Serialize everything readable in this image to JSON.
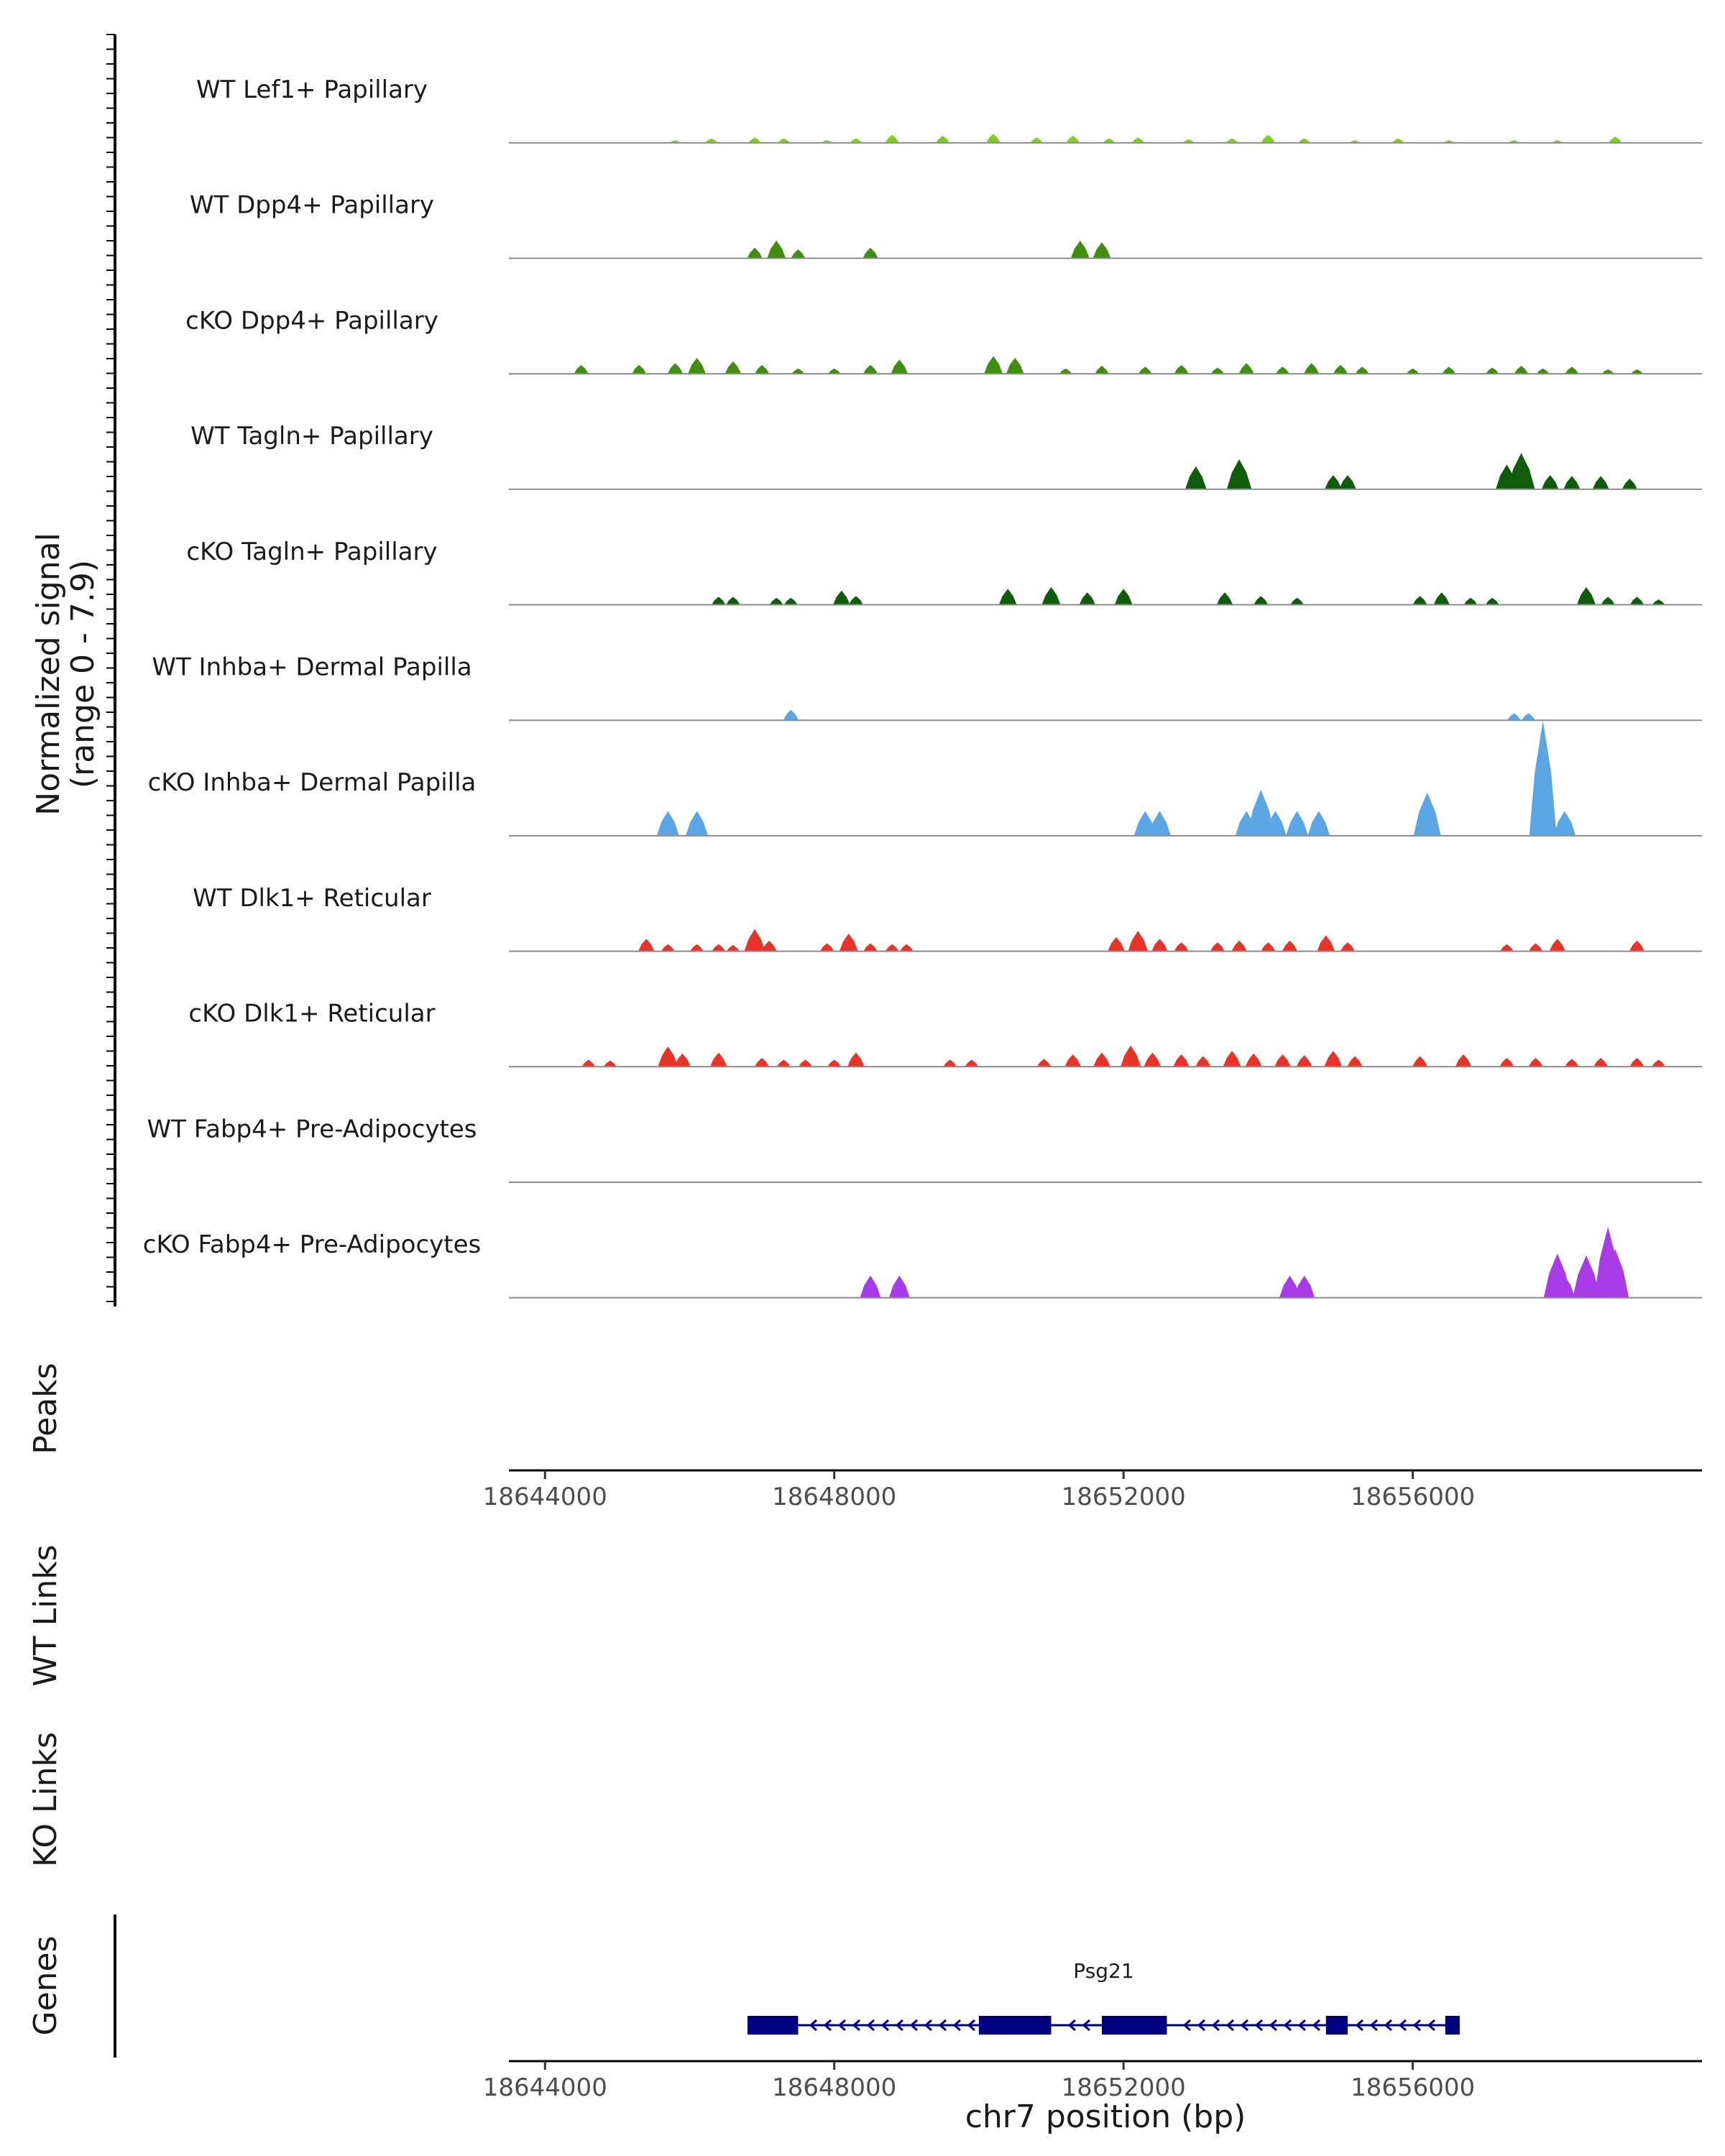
{
  "chart_data": {
    "type": "area",
    "title": "",
    "ylabel": "Normalized signal\n(range 0 - 7.9)",
    "ylim": [
      0,
      7.9
    ],
    "xlabel": "chr7 position (bp)",
    "xlim": [
      18643500,
      18660000
    ],
    "xticks": [
      18644000,
      18648000,
      18652000,
      18656000
    ],
    "xtick_labels": [
      "18644000",
      "18648000",
      "18652000",
      "18656000"
    ],
    "side_labels": {
      "peaks": "Peaks",
      "wt_links": "WT Links",
      "ko_links": "KO Links",
      "genes": "Genes"
    },
    "tracks": [
      {
        "name": "WT Lef1+ Papillary",
        "color": "#7ad31a",
        "peaks": [
          [
            18645800,
            0.3
          ],
          [
            18646300,
            0.5
          ],
          [
            18646900,
            0.6
          ],
          [
            18647300,
            0.5
          ],
          [
            18647900,
            0.3
          ],
          [
            18648300,
            0.5
          ],
          [
            18648800,
            0.9
          ],
          [
            18649500,
            0.8
          ],
          [
            18650200,
            1.0
          ],
          [
            18650800,
            0.6
          ],
          [
            18651300,
            0.8
          ],
          [
            18651800,
            0.5
          ],
          [
            18652200,
            0.6
          ],
          [
            18652900,
            0.4
          ],
          [
            18653500,
            0.5
          ],
          [
            18654000,
            0.9
          ],
          [
            18654500,
            0.5
          ],
          [
            18655200,
            0.3
          ],
          [
            18655800,
            0.5
          ],
          [
            18656500,
            0.3
          ],
          [
            18657400,
            0.3
          ],
          [
            18658000,
            0.3
          ],
          [
            18658800,
            0.7
          ]
        ]
      },
      {
        "name": "WT Dpp4+ Papillary",
        "color": "#3f8e0e",
        "peaks": [
          [
            18646900,
            1.2
          ],
          [
            18647200,
            2.0
          ],
          [
            18647500,
            1.0
          ],
          [
            18648500,
            1.2
          ],
          [
            18651400,
            2.0
          ],
          [
            18651700,
            1.8
          ]
        ]
      },
      {
        "name": "cKO Dpp4+ Papillary",
        "color": "#3f8e0e",
        "peaks": [
          [
            18644500,
            1.0
          ],
          [
            18645300,
            1.0
          ],
          [
            18645800,
            1.2
          ],
          [
            18646100,
            1.8
          ],
          [
            18646600,
            1.4
          ],
          [
            18647000,
            1.0
          ],
          [
            18647500,
            0.6
          ],
          [
            18648000,
            0.6
          ],
          [
            18648500,
            1.0
          ],
          [
            18648900,
            1.6
          ],
          [
            18650200,
            2.0
          ],
          [
            18650500,
            1.8
          ],
          [
            18651200,
            0.6
          ],
          [
            18651700,
            0.9
          ],
          [
            18652300,
            0.8
          ],
          [
            18652800,
            1.0
          ],
          [
            18653300,
            0.7
          ],
          [
            18653700,
            1.2
          ],
          [
            18654200,
            0.8
          ],
          [
            18654600,
            1.2
          ],
          [
            18655000,
            1.0
          ],
          [
            18655300,
            0.8
          ],
          [
            18656000,
            0.6
          ],
          [
            18656500,
            0.8
          ],
          [
            18657100,
            0.7
          ],
          [
            18657500,
            0.9
          ],
          [
            18657800,
            0.6
          ],
          [
            18658200,
            0.8
          ],
          [
            18658700,
            0.5
          ],
          [
            18659100,
            0.5
          ]
        ]
      },
      {
        "name": "WT Tagln+ Papillary",
        "color": "#0f5c0a",
        "peaks": [
          [
            18653000,
            2.6
          ],
          [
            18653600,
            3.4
          ],
          [
            18654900,
            1.6
          ],
          [
            18655100,
            1.6
          ],
          [
            18657300,
            2.8
          ],
          [
            18657500,
            4.1
          ],
          [
            18657900,
            1.6
          ],
          [
            18658200,
            1.5
          ],
          [
            18658600,
            1.5
          ],
          [
            18659000,
            1.2
          ]
        ]
      },
      {
        "name": "cKO Tagln+ Papillary",
        "color": "#0f5c0a",
        "peaks": [
          [
            18646400,
            0.9
          ],
          [
            18646600,
            0.9
          ],
          [
            18647200,
            0.8
          ],
          [
            18647400,
            0.8
          ],
          [
            18648100,
            1.6
          ],
          [
            18648300,
            1.0
          ],
          [
            18650400,
            1.8
          ],
          [
            18651000,
            2.0
          ],
          [
            18651500,
            1.4
          ],
          [
            18652000,
            1.8
          ],
          [
            18653400,
            1.4
          ],
          [
            18653900,
            1.0
          ],
          [
            18654400,
            0.8
          ],
          [
            18656100,
            1.0
          ],
          [
            18656400,
            1.4
          ],
          [
            18656800,
            0.8
          ],
          [
            18657100,
            0.8
          ],
          [
            18658400,
            2.0
          ],
          [
            18658700,
            0.9
          ],
          [
            18659100,
            0.9
          ],
          [
            18659400,
            0.6
          ]
        ]
      },
      {
        "name": "WT Inhba+ Dermal Papilla",
        "color": "#5aa5e3",
        "peaks": [
          [
            18647400,
            1.2
          ],
          [
            18657400,
            0.8
          ],
          [
            18657600,
            0.8
          ]
        ]
      },
      {
        "name": "cKO Inhba+ Dermal Papilla",
        "color": "#5aa5e3",
        "peaks": [
          [
            18645700,
            2.8
          ],
          [
            18646100,
            2.8
          ],
          [
            18652300,
            2.8
          ],
          [
            18652500,
            2.8
          ],
          [
            18653700,
            2.8
          ],
          [
            18653900,
            5.2
          ],
          [
            18654100,
            2.8
          ],
          [
            18654400,
            2.8
          ],
          [
            18654700,
            2.8
          ],
          [
            18656200,
            4.9
          ],
          [
            18657800,
            13.0
          ],
          [
            18658100,
            2.8
          ]
        ]
      },
      {
        "name": "WT Dlk1+ Reticular",
        "color": "#e83428",
        "peaks": [
          [
            18645400,
            1.4
          ],
          [
            18645700,
            0.8
          ],
          [
            18646100,
            0.8
          ],
          [
            18646400,
            0.8
          ],
          [
            18646600,
            0.7
          ],
          [
            18646900,
            2.5
          ],
          [
            18647100,
            1.2
          ],
          [
            18647900,
            0.9
          ],
          [
            18648200,
            2.0
          ],
          [
            18648500,
            0.9
          ],
          [
            18648800,
            0.8
          ],
          [
            18649000,
            0.8
          ],
          [
            18651900,
            1.6
          ],
          [
            18652200,
            2.3
          ],
          [
            18652500,
            1.4
          ],
          [
            18652800,
            1.0
          ],
          [
            18653300,
            1.0
          ],
          [
            18653600,
            1.2
          ],
          [
            18654000,
            1.0
          ],
          [
            18654300,
            1.2
          ],
          [
            18654800,
            1.8
          ],
          [
            18655100,
            1.0
          ],
          [
            18657300,
            0.8
          ],
          [
            18657700,
            0.9
          ],
          [
            18658000,
            1.4
          ],
          [
            18659100,
            1.2
          ]
        ]
      },
      {
        "name": "cKO Dlk1+ Reticular",
        "color": "#e83428",
        "peaks": [
          [
            18644600,
            0.8
          ],
          [
            18644900,
            0.7
          ],
          [
            18645700,
            2.3
          ],
          [
            18645900,
            1.5
          ],
          [
            18646400,
            1.6
          ],
          [
            18647000,
            1.0
          ],
          [
            18647300,
            0.8
          ],
          [
            18647600,
            0.8
          ],
          [
            18648000,
            0.8
          ],
          [
            18648300,
            1.6
          ],
          [
            18649600,
            0.8
          ],
          [
            18649900,
            0.8
          ],
          [
            18650900,
            0.9
          ],
          [
            18651300,
            1.4
          ],
          [
            18651700,
            1.6
          ],
          [
            18652100,
            2.4
          ],
          [
            18652400,
            1.6
          ],
          [
            18652800,
            1.4
          ],
          [
            18653100,
            1.2
          ],
          [
            18653500,
            1.8
          ],
          [
            18653800,
            1.5
          ],
          [
            18654200,
            1.4
          ],
          [
            18654500,
            1.3
          ],
          [
            18654900,
            1.8
          ],
          [
            18655200,
            1.2
          ],
          [
            18656100,
            1.2
          ],
          [
            18656700,
            1.4
          ],
          [
            18657300,
            1.0
          ],
          [
            18657700,
            1.0
          ],
          [
            18658200,
            0.9
          ],
          [
            18658600,
            1.0
          ],
          [
            18659100,
            1.0
          ],
          [
            18659400,
            0.8
          ]
        ]
      },
      {
        "name": "WT Fabp4+ Pre-Adipocytes",
        "color": "#a83ae8",
        "peaks": []
      },
      {
        "name": "cKO Fabp4+ Pre-Adipocytes",
        "color": "#a83ae8",
        "peaks": [
          [
            18648500,
            2.5
          ],
          [
            18648900,
            2.5
          ],
          [
            18654300,
            2.5
          ],
          [
            18654500,
            2.5
          ],
          [
            18658000,
            5.0
          ],
          [
            18658100,
            2.5
          ],
          [
            18658400,
            4.8
          ],
          [
            18658700,
            8.0
          ],
          [
            18658800,
            5.5
          ]
        ]
      }
    ],
    "gene": {
      "name": "Psg21",
      "color": "#000080",
      "strand": "-",
      "start": 18646800,
      "end": 18656650,
      "exons": [
        [
          18646800,
          18647500
        ],
        [
          18650000,
          18651000
        ],
        [
          18651700,
          18652600
        ],
        [
          18654800,
          18655100
        ],
        [
          18656450,
          18656650
        ]
      ]
    }
  }
}
